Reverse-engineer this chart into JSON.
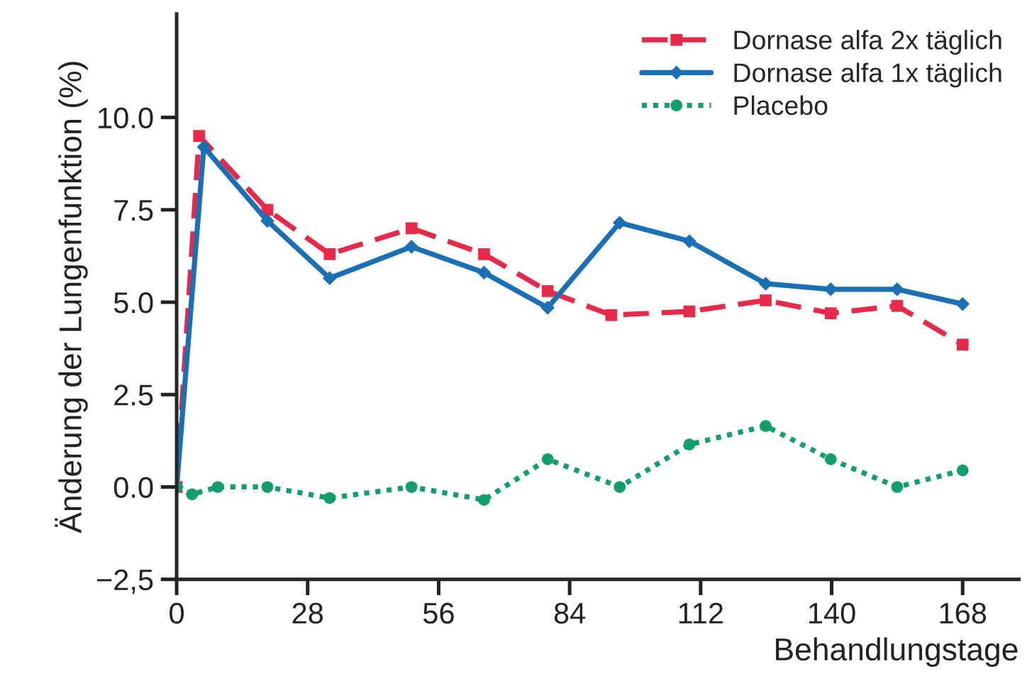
{
  "chart_data": {
    "type": "line",
    "xlabel": "Behandlungstage",
    "ylabel": "Änderung der Lungenfunktion (%)",
    "xlim": [
      0,
      180
    ],
    "ylim": [
      -2.5,
      12.8
    ],
    "xticks": [
      0,
      28,
      56,
      84,
      112,
      140,
      168
    ],
    "yticks": [
      {
        "value": -2.5,
        "label": "−2,5"
      },
      {
        "value": 0,
        "label": "0.0"
      },
      {
        "value": 2.5,
        "label": "2.5"
      },
      {
        "value": 5,
        "label": "5.0"
      },
      {
        "value": 7.5,
        "label": "7.5"
      },
      {
        "value": 10,
        "label": "10.0"
      }
    ],
    "grid": false,
    "legend": "top right",
    "series": [
      {
        "name": "Dornase alfa 2x täglich",
        "color": "#e8294a",
        "marker": "square",
        "line_style": "dashed",
        "x": [
          0,
          4.8,
          19.4,
          32.7,
          50.2,
          65.7,
          79.3,
          92.9,
          109.6,
          125.9,
          139.8,
          154,
          168
        ],
        "values": [
          0,
          9.5,
          7.5,
          6.3,
          7.0,
          6.3,
          5.3,
          4.65,
          4.75,
          5.05,
          4.7,
          4.9,
          3.85
        ]
      },
      {
        "name": "Dornase alfa 1x täglich",
        "color": "#1a6fb5",
        "marker": "diamond",
        "line_style": "solid",
        "x": [
          0,
          5.8,
          19.4,
          32.7,
          50.2,
          65.7,
          79.3,
          94.7,
          109.6,
          125.9,
          139.8,
          154,
          168
        ],
        "values": [
          0,
          9.2,
          7.2,
          5.65,
          6.5,
          5.8,
          4.85,
          7.15,
          6.65,
          5.5,
          5.35,
          5.35,
          4.95
        ]
      },
      {
        "name": "Placebo",
        "color": "#12a06a",
        "marker": "circle",
        "line_style": "dotted",
        "x": [
          0,
          3.3,
          8.8,
          19.4,
          32.7,
          50.2,
          65.7,
          79.3,
          94.7,
          109.6,
          125.9,
          139.8,
          154,
          168
        ],
        "values": [
          0,
          -0.2,
          0,
          0,
          -0.3,
          0,
          -0.35,
          0.75,
          0,
          1.15,
          1.65,
          0.75,
          0,
          0.45
        ]
      }
    ]
  }
}
